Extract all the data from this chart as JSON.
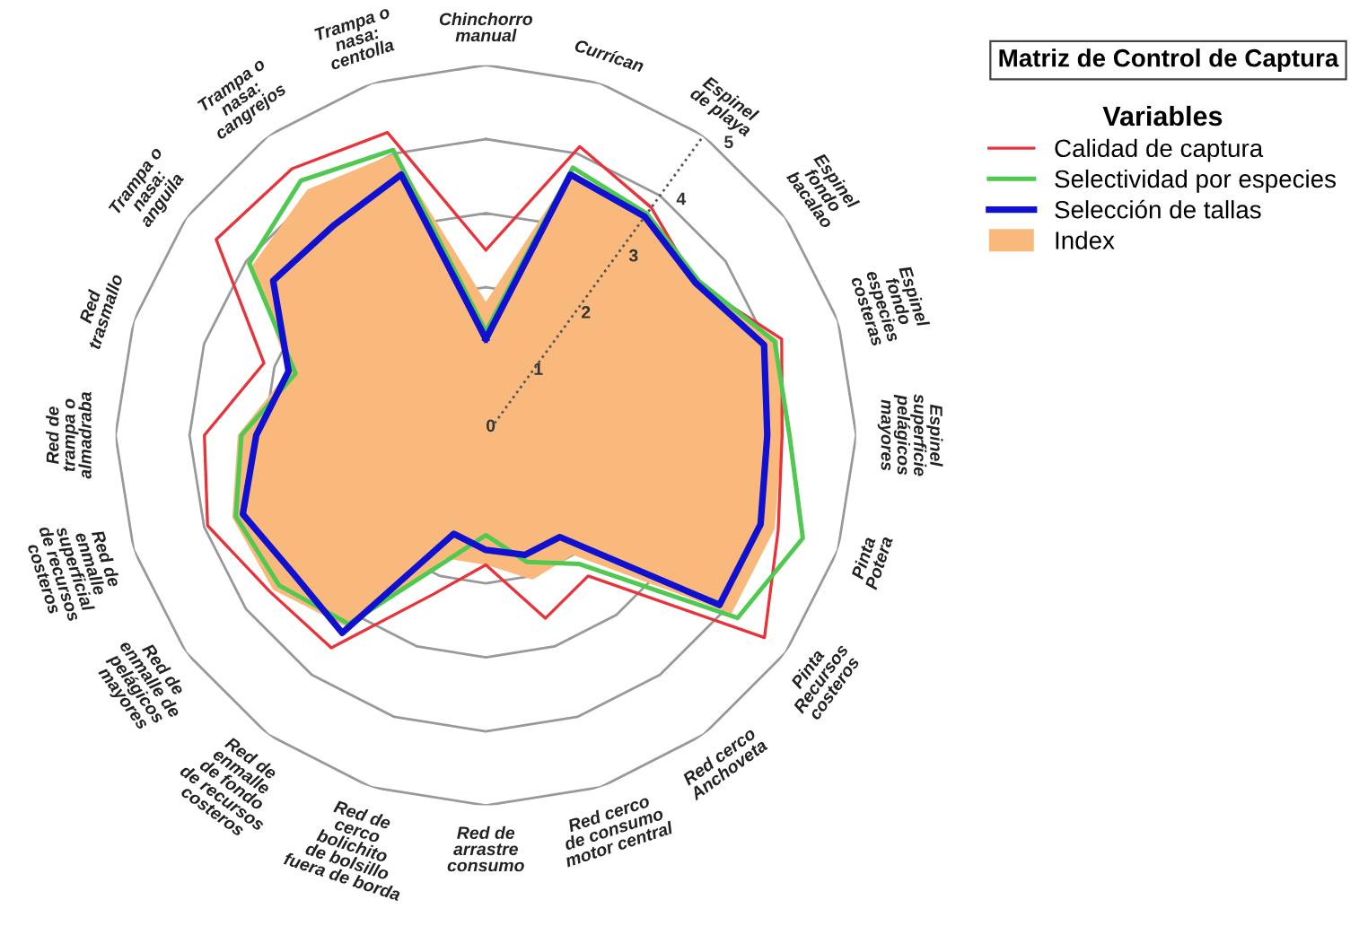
{
  "chart_data": {
    "type": "radar",
    "title": "Matriz de Control de Captura",
    "legend_title": "Variables",
    "legend": "top right",
    "grid": true,
    "ylim": [
      0,
      5
    ],
    "yticks": [
      0,
      1,
      2,
      3,
      4,
      5
    ],
    "categories": [
      "Chinchorro\nmanual",
      "Currícan",
      "Espinel\nde playa",
      "Espinel\nfondo\nbacalao",
      "Espinel\nfondo\nespecies\ncosteras",
      "Espinel\nsuperficie\npelágicos\nmayores",
      "Pinta\nPotera",
      "Pinta\nRecursos\ncosteros",
      "Red cerco\nAnchoveta",
      "Red cerco\nde consumo\nmotor central",
      "Red de\narrastre\nconsumo",
      "Red de\ncerco\nbolichito\nde bolsillo\nfuera de borda",
      "Red de\nenmalle\nde fondo\nde recursos\ncosteros",
      "Red de\nenmalle de\npelágicos\nmayores",
      "Red de\nenmalle\nsuperficial\nde recursos\ncosteros",
      "Red de\ntrampa o\nalmadraba",
      "Red\ntrasmallo",
      "Trampa o\nnasa:\nanguila",
      "Trampa o\nnasa:\ncangrejos",
      "Trampa o\nnasa:\ncentolla"
    ],
    "series": [
      {
        "name": "Calidad de captura",
        "color": "#e8333a",
        "values": [
          2.5,
          4.1,
          3.8,
          3.5,
          4.2,
          4.0,
          4.15,
          4.65,
          2.35,
          2.6,
          1.75,
          2.25,
          3.55,
          3.6,
          3.95,
          3.8,
          3.15,
          4.5,
          4.45,
          4.3
        ]
      },
      {
        "name": "Selectividad por especies",
        "color": "#4fc94f",
        "values": [
          1.4,
          3.8,
          3.7,
          3.55,
          4.1,
          4.1,
          4.5,
          4.2,
          2.15,
          1.8,
          1.35,
          1.8,
          3.15,
          3.45,
          3.55,
          3.3,
          2.7,
          3.95,
          4.25,
          4.05
        ]
      },
      {
        "name": "Selección de tallas",
        "color": "#1010d0",
        "values": [
          1.3,
          3.7,
          3.65,
          3.5,
          3.95,
          3.8,
          3.9,
          3.9,
          1.7,
          1.7,
          1.55,
          1.4,
          3.3,
          3.2,
          3.45,
          3.1,
          2.8,
          3.55,
          3.5,
          3.7
        ]
      },
      {
        "name": "Index",
        "type": "area",
        "color": "#f9b97c",
        "values": [
          1.8,
          3.75,
          3.7,
          3.55,
          4.15,
          4.0,
          4.1,
          4.1,
          2.0,
          2.05,
          1.75,
          1.75,
          3.2,
          3.55,
          3.6,
          3.35,
          2.8,
          3.9,
          4.1,
          4.0
        ]
      }
    ]
  }
}
